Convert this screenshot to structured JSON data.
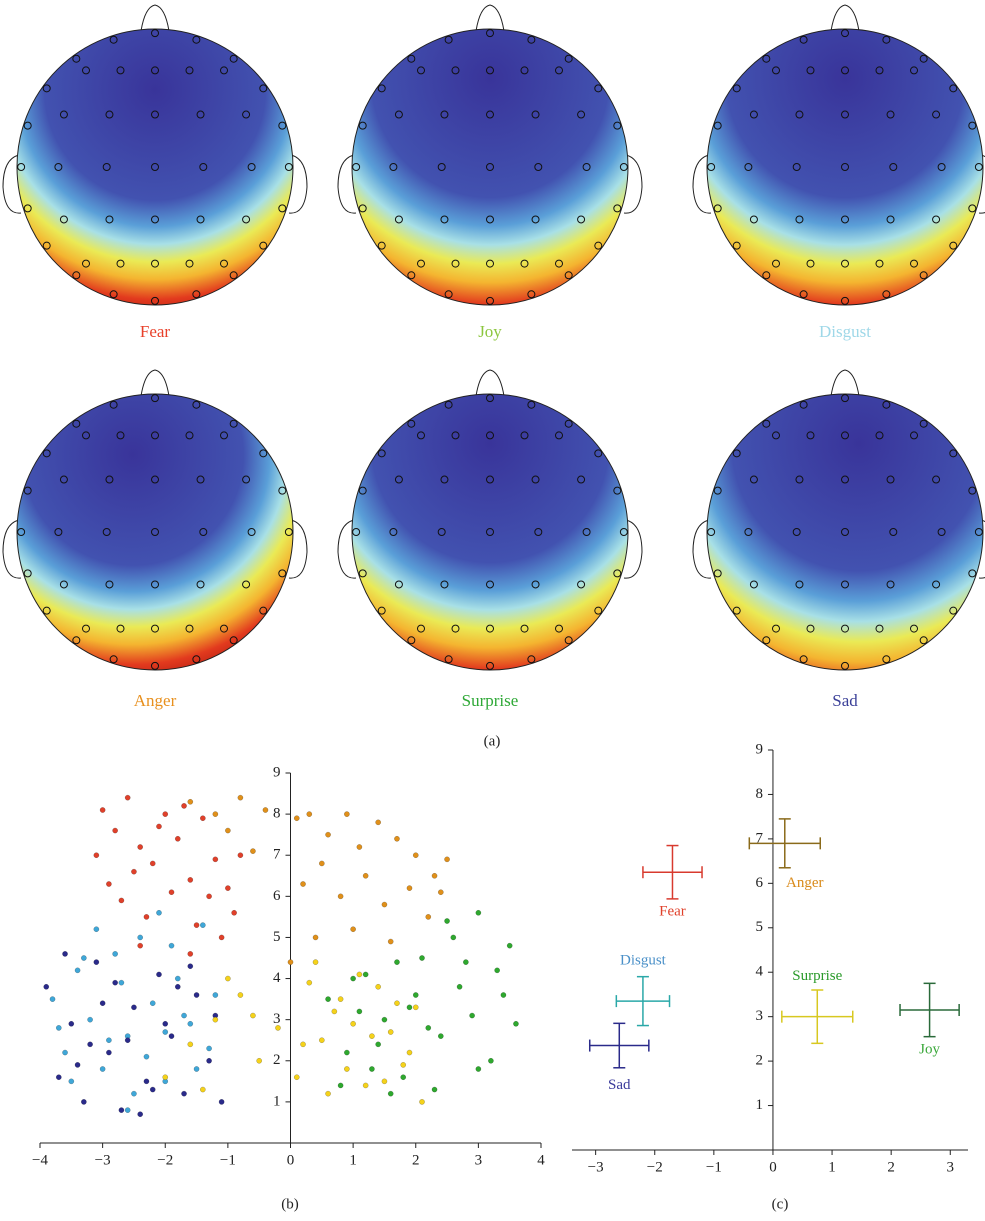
{
  "topomaps": {
    "items": [
      {
        "label": "Fear",
        "color": "#e8402a"
      },
      {
        "label": "Joy",
        "color": "#8cc63e"
      },
      {
        "label": "Disgust",
        "color": "#9fd8e8"
      },
      {
        "label": "Anger",
        "color": "#e8901e"
      },
      {
        "label": "Surprise",
        "color": "#2ea836"
      },
      {
        "label": "Sad",
        "color": "#3a3f98"
      }
    ],
    "caption": "(a)"
  },
  "chart_data": [
    {
      "type": "scatter",
      "caption": "(b)",
      "xlim": [
        -4,
        4
      ],
      "ylim": [
        0,
        9
      ],
      "xticks": [
        {
          "value": -4,
          "label": "−4"
        },
        {
          "value": -3,
          "label": "−3"
        },
        {
          "value": -2,
          "label": "−2"
        },
        {
          "value": -1,
          "label": "−1"
        },
        0,
        1,
        2,
        3,
        4
      ],
      "yticks": [
        1,
        2,
        3,
        4,
        5,
        6,
        7,
        8,
        9
      ],
      "series": [
        {
          "color": "#e0402a",
          "x": [
            -3.0,
            -2.8,
            -2.6,
            -2.4,
            -2.2,
            -2.0,
            -1.8,
            -1.6,
            -1.4,
            -1.2,
            -1.0,
            -0.8,
            -2.7,
            -2.3,
            -1.9,
            -1.5,
            -1.1,
            -3.1,
            -2.5,
            -2.1,
            -1.7,
            -1.3,
            -0.9,
            -2.9,
            -2.4,
            -1.6
          ],
          "values": [
            8.1,
            7.6,
            8.4,
            7.2,
            6.8,
            8.0,
            7.4,
            6.4,
            7.9,
            6.9,
            6.2,
            7.0,
            5.9,
            5.5,
            6.1,
            5.3,
            5.0,
            7.0,
            6.6,
            7.7,
            8.2,
            6.0,
            5.6,
            6.3,
            4.8,
            4.6
          ]
        },
        {
          "color": "#e0901a",
          "x": [
            -1.6,
            -1.2,
            -0.8,
            -0.4,
            0.1,
            0.3,
            0.6,
            0.9,
            1.1,
            1.4,
            1.7,
            2.0,
            2.3,
            2.5,
            0.2,
            0.5,
            0.8,
            1.2,
            1.5,
            1.9,
            2.2,
            -1.0,
            -0.6,
            0.4,
            1.0,
            1.6,
            2.4,
            0.0
          ],
          "values": [
            8.3,
            8.0,
            8.4,
            8.1,
            7.9,
            8.0,
            7.5,
            8.0,
            7.2,
            7.8,
            7.4,
            7.0,
            6.5,
            6.9,
            6.3,
            6.8,
            6.0,
            6.5,
            5.8,
            6.2,
            5.5,
            7.6,
            7.1,
            5.0,
            5.2,
            4.9,
            6.1,
            4.4
          ]
        },
        {
          "color": "#3fa7d8",
          "x": [
            -3.8,
            -3.6,
            -3.4,
            -3.2,
            -3.0,
            -2.8,
            -2.6,
            -2.4,
            -2.2,
            -2.0,
            -1.8,
            -1.6,
            -1.4,
            -1.2,
            -3.5,
            -3.1,
            -2.7,
            -2.3,
            -1.9,
            -1.5,
            -3.7,
            -2.9,
            -2.5,
            -2.1,
            -1.7,
            -3.3,
            -1.3,
            -2.6,
            -2.0
          ],
          "values": [
            3.5,
            2.2,
            4.2,
            3.0,
            1.8,
            4.6,
            2.6,
            5.0,
            3.4,
            1.5,
            4.0,
            2.9,
            5.3,
            3.6,
            1.5,
            5.2,
            3.9,
            2.1,
            4.8,
            1.8,
            2.8,
            2.5,
            1.2,
            5.6,
            3.1,
            4.5,
            2.3,
            0.8,
            2.7
          ]
        },
        {
          "color": "#2a2a8a",
          "x": [
            -3.9,
            -3.7,
            -3.5,
            -3.3,
            -3.1,
            -2.9,
            -2.7,
            -2.5,
            -2.3,
            -2.1,
            -1.9,
            -1.7,
            -1.5,
            -1.3,
            -1.1,
            -3.6,
            -3.2,
            -2.8,
            -2.4,
            -2.0,
            -1.6,
            -1.2,
            -3.4,
            -3.0,
            -2.6,
            -2.2,
            -1.8
          ],
          "values": [
            3.8,
            1.6,
            2.9,
            1.0,
            4.4,
            2.2,
            0.8,
            3.3,
            1.5,
            4.1,
            2.6,
            1.2,
            3.6,
            2.0,
            1.0,
            4.6,
            2.4,
            3.9,
            0.7,
            2.9,
            4.3,
            3.1,
            1.9,
            3.4,
            2.5,
            1.3,
            3.8
          ]
        },
        {
          "color": "#f5d21a",
          "x": [
            -2.0,
            -1.6,
            -1.2,
            -0.8,
            -0.5,
            -0.2,
            0.1,
            0.3,
            0.5,
            0.7,
            0.9,
            1.1,
            1.3,
            1.5,
            1.7,
            1.9,
            2.1,
            -1.4,
            -1.0,
            -0.6,
            0.2,
            0.6,
            1.0,
            1.4,
            1.8,
            0.4,
            0.8,
            1.2,
            1.6,
            2.0
          ],
          "values": [
            1.6,
            2.4,
            3.0,
            3.6,
            2.0,
            2.8,
            1.6,
            3.9,
            2.5,
            3.2,
            1.8,
            4.1,
            2.6,
            1.5,
            3.4,
            2.2,
            1.0,
            1.3,
            4.0,
            3.1,
            2.4,
            1.2,
            2.9,
            3.8,
            1.9,
            4.4,
            3.5,
            1.4,
            2.7,
            3.3
          ]
        },
        {
          "color": "#2ea82e",
          "x": [
            0.6,
            0.9,
            1.2,
            1.5,
            1.8,
            2.1,
            2.4,
            2.7,
            3.0,
            3.3,
            3.6,
            0.8,
            1.1,
            1.4,
            1.7,
            2.0,
            2.3,
            2.6,
            2.9,
            3.2,
            3.5,
            1.0,
            1.6,
            2.2,
            2.8,
            3.4,
            2.5,
            3.0,
            1.3,
            1.9
          ],
          "values": [
            3.5,
            2.2,
            4.1,
            3.0,
            1.6,
            4.5,
            2.6,
            3.8,
            1.8,
            4.2,
            2.9,
            1.4,
            3.2,
            2.4,
            4.4,
            3.6,
            1.3,
            5.0,
            3.1,
            2.0,
            4.8,
            4.0,
            1.2,
            2.8,
            4.4,
            3.6,
            5.4,
            5.6,
            1.8,
            3.3
          ]
        }
      ]
    },
    {
      "type": "errorbar",
      "caption": "(c)",
      "xlim": [
        -3.4,
        3.3
      ],
      "ylim": [
        0,
        9
      ],
      "xticks": [
        {
          "value": -3,
          "label": "−3"
        },
        {
          "value": -2,
          "label": "−2"
        },
        {
          "value": -1,
          "label": "−1"
        },
        0,
        1,
        2,
        3
      ],
      "yticks": [
        1,
        2,
        3,
        4,
        5,
        6,
        7,
        8,
        9
      ],
      "series": [
        {
          "name": "Fear",
          "color": "#d83a2e",
          "label_color": "#e0402a",
          "x": [
            -1.7
          ],
          "values": [
            6.25
          ],
          "xerr": [
            0.5
          ],
          "yerr": [
            0.6
          ]
        },
        {
          "name": "Anger",
          "color": "#8a6a1a",
          "label_color": "#d98a1a",
          "x": [
            0.2
          ],
          "values": [
            6.9
          ],
          "xerr": [
            0.6
          ],
          "yerr": [
            0.55
          ]
        },
        {
          "name": "Disgust",
          "color": "#2aa8a8",
          "label_color": "#4a90c8",
          "x": [
            -2.2
          ],
          "values": [
            3.35
          ],
          "xerr": [
            0.45
          ],
          "yerr": [
            0.55
          ]
        },
        {
          "name": "Surprise",
          "color": "#d8c820",
          "label_color": "#2a9a2a",
          "x": [
            0.75
          ],
          "values": [
            3.0
          ],
          "xerr": [
            0.6
          ],
          "yerr": [
            0.6
          ]
        },
        {
          "name": "Sad",
          "color": "#2a2a8a",
          "label_color": "#3a3a9a",
          "x": [
            -2.6
          ],
          "values": [
            2.35
          ],
          "xerr": [
            0.5
          ],
          "yerr": [
            0.5
          ]
        },
        {
          "name": "Joy",
          "color": "#2a6a3a",
          "label_color": "#3aa83a",
          "x": [
            2.65
          ],
          "values": [
            3.15
          ],
          "xerr": [
            0.5
          ],
          "yerr": [
            0.6
          ]
        }
      ]
    }
  ]
}
